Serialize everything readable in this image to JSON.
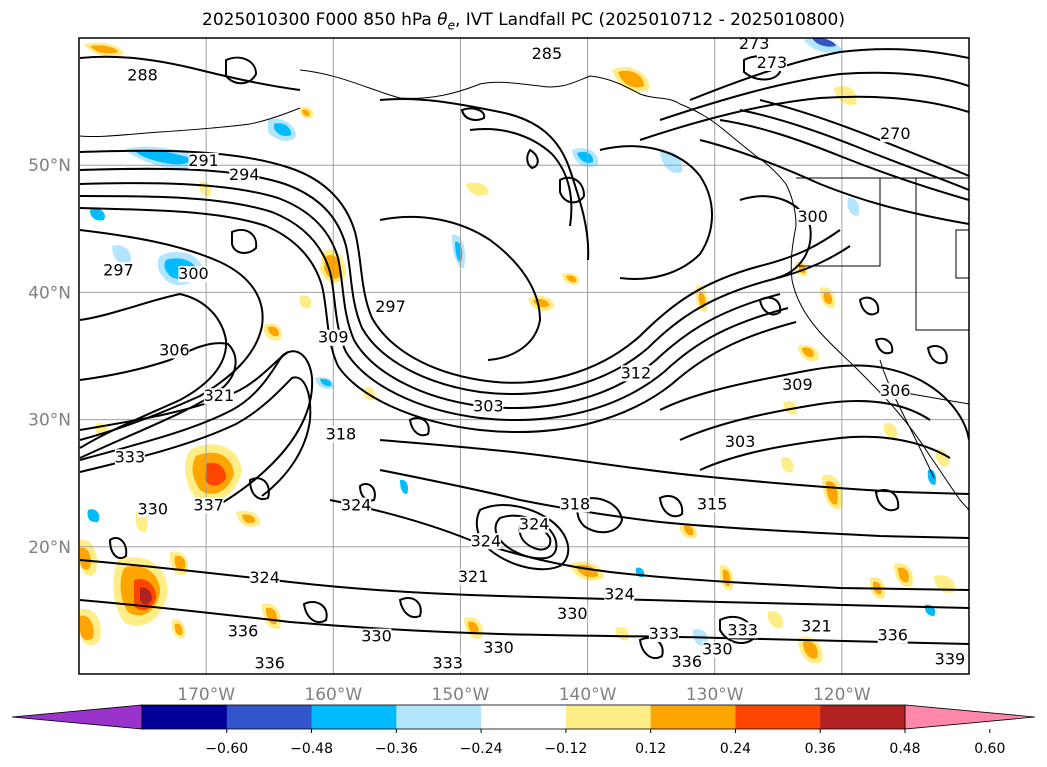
{
  "title": {
    "prefix": "2025010300 F000 850 hPa ",
    "symbol": "θ",
    "symbol_sub": "e",
    "suffix": ", IVT Landfall PC (2025010712 - 2025010800)"
  },
  "map": {
    "lon_range": [
      -180,
      -110
    ],
    "lat_range": [
      10,
      60
    ],
    "lon_ticks": [
      {
        "value": -170,
        "label": "170°W"
      },
      {
        "value": -160,
        "label": "160°W"
      },
      {
        "value": -150,
        "label": "150°W"
      },
      {
        "value": -140,
        "label": "140°W"
      },
      {
        "value": -130,
        "label": "130°W"
      },
      {
        "value": -120,
        "label": "120°W"
      }
    ],
    "lat_ticks": [
      {
        "value": 20,
        "label": "20°N"
      },
      {
        "value": 30,
        "label": "30°N"
      },
      {
        "value": 40,
        "label": "40°N"
      },
      {
        "value": 50,
        "label": "50°N"
      }
    ],
    "grid": true,
    "contour_labels": [
      {
        "text": "288",
        "lon": -175.0,
        "lat": 56.8
      },
      {
        "text": "291",
        "lon": -170.2,
        "lat": 50.1
      },
      {
        "text": "294",
        "lon": -167.0,
        "lat": 49.0
      },
      {
        "text": "297",
        "lon": -176.9,
        "lat": 41.5
      },
      {
        "text": "300",
        "lon": -171.0,
        "lat": 41.2
      },
      {
        "text": "297",
        "lon": -155.5,
        "lat": 38.6
      },
      {
        "text": "306",
        "lon": -172.5,
        "lat": 35.2
      },
      {
        "text": "303",
        "lon": -147.8,
        "lat": 30.8
      },
      {
        "text": "333",
        "lon": -176.0,
        "lat": 26.8
      },
      {
        "text": "330",
        "lon": -174.2,
        "lat": 22.7
      },
      {
        "text": "324",
        "lon": -158.2,
        "lat": 23.0
      },
      {
        "text": "324",
        "lon": -148.0,
        "lat": 20.2
      },
      {
        "text": "321",
        "lon": -149.0,
        "lat": 17.4
      },
      {
        "text": "324",
        "lon": -165.4,
        "lat": 17.3
      },
      {
        "text": "336",
        "lon": -167.1,
        "lat": 13.1
      },
      {
        "text": "330",
        "lon": -156.6,
        "lat": 12.7
      },
      {
        "text": "336",
        "lon": -165.0,
        "lat": 10.6
      },
      {
        "text": "333",
        "lon": -151.0,
        "lat": 10.6
      },
      {
        "text": "330",
        "lon": -147.0,
        "lat": 11.8
      },
      {
        "text": "330",
        "lon": -141.2,
        "lat": 14.5
      },
      {
        "text": "324",
        "lon": -137.5,
        "lat": 16.0
      },
      {
        "text": "333",
        "lon": -134.0,
        "lat": 12.9
      },
      {
        "text": "333",
        "lon": -127.8,
        "lat": 13.2
      },
      {
        "text": "330",
        "lon": -129.8,
        "lat": 11.7
      },
      {
        "text": "336",
        "lon": -132.2,
        "lat": 10.7
      },
      {
        "text": "315",
        "lon": -130.2,
        "lat": 23.1
      },
      {
        "text": "303",
        "lon": -128.0,
        "lat": 28.0
      },
      {
        "text": "309",
        "lon": -123.5,
        "lat": 32.5
      },
      {
        "text": "306",
        "lon": -115.8,
        "lat": 32.0
      },
      {
        "text": "312",
        "lon": -136.2,
        "lat": 33.4
      },
      {
        "text": "300",
        "lon": -122.3,
        "lat": 45.7
      },
      {
        "text": "273",
        "lon": -126.9,
        "lat": 59.3
      },
      {
        "text": "273",
        "lon": -125.5,
        "lat": 57.8
      },
      {
        "text": "270",
        "lon": -115.8,
        "lat": 52.2
      },
      {
        "text": "285",
        "lon": -143.2,
        "lat": 58.5
      },
      {
        "text": "318",
        "lon": -159.4,
        "lat": 28.6
      },
      {
        "text": "324",
        "lon": -144.2,
        "lat": 21.5
      },
      {
        "text": "318",
        "lon": -141.0,
        "lat": 23.1
      },
      {
        "text": "321",
        "lon": -122.0,
        "lat": 13.5
      },
      {
        "text": "336",
        "lon": -116.0,
        "lat": 12.8
      },
      {
        "text": "339",
        "lon": -111.5,
        "lat": 10.9
      },
      {
        "text": "337",
        "lon": -169.8,
        "lat": 23.0
      },
      {
        "text": "321",
        "lon": -169.0,
        "lat": 31.6
      },
      {
        "text": "309",
        "lon": -160.0,
        "lat": 36.2
      }
    ]
  },
  "colorbar": {
    "colors": [
      "#9933cc",
      "#000099",
      "#3355cc",
      "#00bbff",
      "#b3e5ff",
      "#ffffff",
      "#ffee88",
      "#ffa500",
      "#ff4500",
      "#b22222",
      "#ff88aa"
    ],
    "tick_labels": [
      "−0.60",
      "−0.48",
      "−0.36",
      "−0.24",
      "−0.12",
      "0.12",
      "0.24",
      "0.36",
      "0.48",
      "0.60"
    ]
  },
  "colors": {
    "contour": "#000000",
    "grid": "#a0a0a0",
    "positive_light": "#ffee88",
    "positive_mid": "#ffa500",
    "positive_strong": "#ff4500",
    "negative_light": "#b3e5ff",
    "negative_mid": "#00bbff",
    "negative_strong": "#3355cc"
  }
}
